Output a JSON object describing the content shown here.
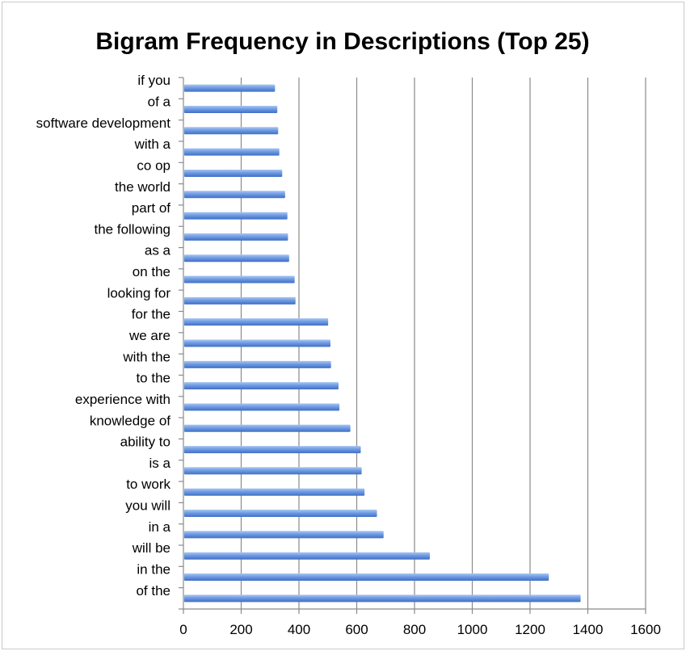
{
  "chart_data": {
    "type": "bar",
    "orientation": "horizontal",
    "title": "Bigram Frequency in Descriptions (Top 25)",
    "xlabel": "",
    "ylabel": "",
    "xlim": [
      0,
      1600
    ],
    "xticks": [
      0,
      200,
      400,
      600,
      800,
      1000,
      1200,
      1400,
      1600
    ],
    "grid": true,
    "legend": "none",
    "bar_color": "#5f8fdb",
    "categories": [
      "of the",
      "in the",
      "will be",
      "in a",
      "you will",
      "to work",
      "is a",
      "ability to",
      "knowledge of",
      "experience with",
      "to the",
      "with the",
      "we are",
      "for the",
      "looking for",
      "on the",
      "as a",
      "the following",
      "part of",
      "the world",
      "co op",
      "with a",
      "software development",
      "of a",
      "if you"
    ],
    "values": [
      1375,
      1265,
      853,
      693,
      670,
      627,
      617,
      614,
      578,
      540,
      537,
      511,
      509,
      501,
      388,
      385,
      366,
      362,
      360,
      352,
      342,
      332,
      328,
      325,
      317
    ]
  }
}
